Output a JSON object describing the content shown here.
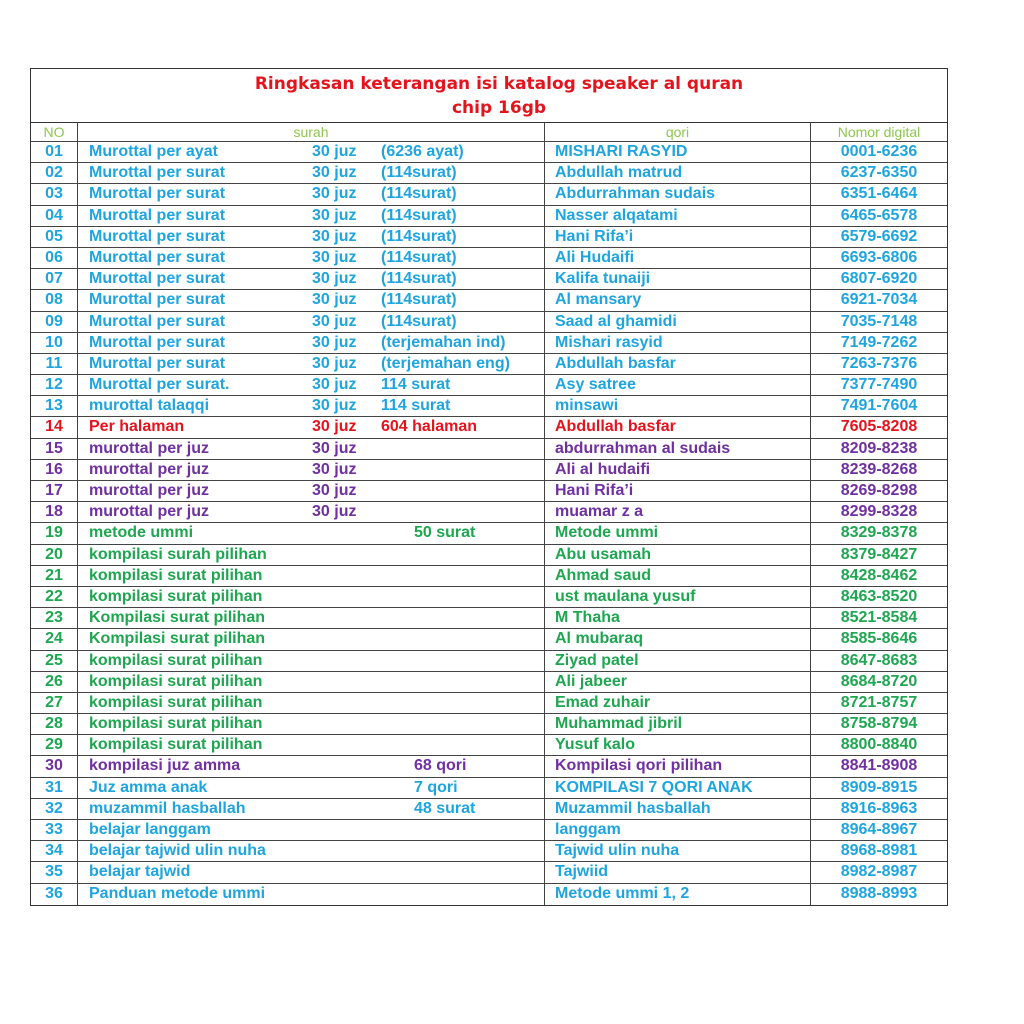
{
  "title": {
    "line1": "Ringkasan keterangan isi katalog speaker al quran",
    "line2": "chip 16gb"
  },
  "header": {
    "no": "NO",
    "surah": "surah",
    "qori": "qori",
    "nomor": "Nomor digital"
  },
  "colors": {
    "blue": "#1ea5df",
    "red": "#e3141b",
    "purple": "#7030a0",
    "green": "#1ea650",
    "header": "#8cc84b",
    "title": "#e3141b"
  },
  "rows": [
    {
      "no": "01",
      "surah": "Murottal per ayat",
      "juz": "30 juz",
      "detail": "(6236 ayat)",
      "qori": "MISHARI RASYID",
      "nomor": "0001-6236",
      "color": "blue"
    },
    {
      "no": "02",
      "surah": "Murottal per surat",
      "juz": "30 juz",
      "detail": "(114surat)",
      "qori": "Abdullah  matrud",
      "nomor": "6237-6350",
      "color": "blue"
    },
    {
      "no": "03",
      "surah": "Murottal per surat",
      "juz": "30 juz",
      "detail": "(114surat)",
      "qori": "Abdurrahman sudais",
      "nomor": "6351-6464",
      "color": "blue"
    },
    {
      "no": "04",
      "surah": "Murottal per surat",
      "juz": "30 juz",
      "detail": "(114surat)",
      "qori": "Nasser alqatami",
      "nomor": "6465-6578",
      "color": "blue"
    },
    {
      "no": "05",
      "surah": "Murottal per surat",
      "juz": "30 juz",
      "detail": "(114surat)",
      "qori": "Hani Rifa’i",
      "nomor": "6579-6692",
      "color": "blue"
    },
    {
      "no": "06",
      "surah": "Murottal per surat",
      "juz": "30 juz",
      "detail": "(114surat)",
      "qori": "Ali Hudaifi",
      "nomor": "6693-6806",
      "color": "blue"
    },
    {
      "no": "07",
      "surah": "Murottal per surat",
      "juz": "30 juz",
      "detail": "(114surat)",
      "qori": "Kalifa tunaiji",
      "nomor": "6807-6920",
      "color": "blue"
    },
    {
      "no": "08",
      "surah": "Murottal per surat",
      "juz": "30 juz",
      "detail": "(114surat)",
      "qori": "Al mansary",
      "nomor": "6921-7034",
      "color": "blue"
    },
    {
      "no": "09",
      "surah": "Murottal per surat",
      "juz": "30 juz",
      "detail": "(114surat)",
      "qori": "Saad al ghamidi",
      "nomor": "7035-7148",
      "color": "blue"
    },
    {
      "no": "10",
      "surah": "Murottal per surat",
      "juz": "30 juz",
      "detail": "(terjemahan ind)",
      "qori": "Mishari rasyid",
      "nomor": "7149-7262",
      "color": "blue"
    },
    {
      "no": "11",
      "surah": "Murottal per surat",
      "juz": "30 juz",
      "detail": "(terjemahan eng)",
      "qori": "Abdullah basfar",
      "nomor": "7263-7376",
      "color": "blue"
    },
    {
      "no": "12",
      "surah": "Murottal per surat.",
      "juz": "30 juz",
      "detail": "114 surat",
      "qori": "Asy satree",
      "nomor": "7377-7490",
      "color": "blue"
    },
    {
      "no": "13",
      "surah": "murottal talaqqi",
      "juz": "30 juz",
      "detail": "114 surat",
      "qori": "minsawi",
      "nomor": "7491-7604",
      "color": "blue"
    },
    {
      "no": "14",
      "surah": "Per halaman",
      "juz": "30 juz",
      "detail": "604 halaman",
      "qori": "Abdullah basfar",
      "nomor": "7605-8208",
      "color": "red"
    },
    {
      "no": "15",
      "surah": "murottal per juz",
      "juz": "30  juz",
      "detail": "",
      "qori": "abdurrahman al sudais",
      "nomor": "8209-8238",
      "color": "purple"
    },
    {
      "no": "16",
      "surah": "murottal per juz",
      "juz": "30  juz",
      "detail": "",
      "qori": "Ali al hudaifi",
      "nomor": "8239-8268",
      "color": "purple"
    },
    {
      "no": "17",
      "surah": "murottal per juz",
      "juz": "30  juz",
      "detail": "",
      "qori": "Hani Rifa’i",
      "nomor": "8269-8298",
      "color": "purple"
    },
    {
      "no": "18",
      "surah": "murottal per juz",
      "juz": "30  juz",
      "detail": "",
      "qori": "muamar z a",
      "nomor": "8299-8328",
      "color": "purple"
    },
    {
      "no": "19",
      "surah": "metode ummi",
      "juz": "",
      "detail": "50 surat",
      "qori": "Metode ummi",
      "nomor": "8329-8378",
      "color": "green"
    },
    {
      "no": "20",
      "surah": "kompilasi surah pilihan",
      "juz": "",
      "detail": "",
      "qori": "Abu usamah",
      "nomor": "8379-8427",
      "color": "green"
    },
    {
      "no": "21",
      "surah": "kompilasi surat pilihan",
      "juz": "",
      "detail": "",
      "qori": "Ahmad saud",
      "nomor": "8428-8462",
      "color": "green"
    },
    {
      "no": "22",
      "surah": "kompilasi surat pilihan",
      "juz": "",
      "detail": "",
      "qori": "ust maulana yusuf",
      "nomor": "8463-8520",
      "color": "green"
    },
    {
      "no": "23",
      "surah": "Kompilasi surat pilihan",
      "juz": "",
      "detail": "",
      "qori": "M Thaha",
      "nomor": "8521-8584",
      "color": "green"
    },
    {
      "no": "24",
      "surah": "Kompilasi surat pilihan",
      "juz": "",
      "detail": "",
      "qori": "Al mubaraq",
      "nomor": "8585-8646",
      "color": "green"
    },
    {
      "no": "25",
      "surah": "kompilasi surat pilihan",
      "juz": "",
      "detail": "",
      "qori": "Ziyad patel",
      "nomor": "8647-8683",
      "color": "green"
    },
    {
      "no": "26",
      "surah": "kompilasi surat pilihan",
      "juz": "",
      "detail": "",
      "qori": "Ali jabeer",
      "nomor": "8684-8720",
      "color": "green"
    },
    {
      "no": "27",
      "surah": "kompilasi surat pilihan",
      "juz": "",
      "detail": "",
      "qori": "Emad zuhair",
      "nomor": "8721-8757",
      "color": "green"
    },
    {
      "no": "28",
      "surah": "kompilasi surat pilihan",
      "juz": "",
      "detail": "",
      "qori": "Muhammad jibril",
      "nomor": "8758-8794",
      "color": "green"
    },
    {
      "no": "29",
      "surah": "kompilasi surat pilihan",
      "juz": "",
      "detail": "",
      "qori": "Yusuf kalo",
      "nomor": "8800-8840",
      "color": "green"
    },
    {
      "no": "30",
      "surah": "kompilasi juz amma",
      "juz": "",
      "detail": "68 qori",
      "qori": "Kompilasi qori pilihan",
      "nomor": "8841-8908",
      "color": "purple"
    },
    {
      "no": "31",
      "surah": "Juz amma anak",
      "juz": "",
      "detail": " 7 qori",
      "qori": "KOMPILASI 7 QORI ANAK",
      "nomor": "8909-8915",
      "color": "blue"
    },
    {
      "no": "32",
      "surah": "muzammil hasballah",
      "juz": "",
      "detail": "48 surat",
      "qori": "Muzammil hasballah",
      "nomor": "8916-8963",
      "color": "blue"
    },
    {
      "no": "33",
      "surah": "belajar langgam",
      "juz": "",
      "detail": "",
      "qori": "langgam",
      "nomor": "8964-8967",
      "color": "blue"
    },
    {
      "no": "34",
      "surah": "belajar tajwid ulin nuha",
      "juz": "",
      "detail": "",
      "qori": "Tajwid ulin nuha",
      "nomor": "8968-8981",
      "color": "blue"
    },
    {
      "no": "35",
      "surah": "belajar tajwid",
      "juz": "",
      "detail": "",
      "qori": "Tajwiid",
      "nomor": "8982-8987",
      "color": "blue"
    },
    {
      "no": "36",
      "surah": "Panduan metode ummi",
      "juz": "",
      "detail": "",
      "qori": "Metode ummi 1, 2",
      "nomor": "8988-8993",
      "color": "blue"
    }
  ]
}
